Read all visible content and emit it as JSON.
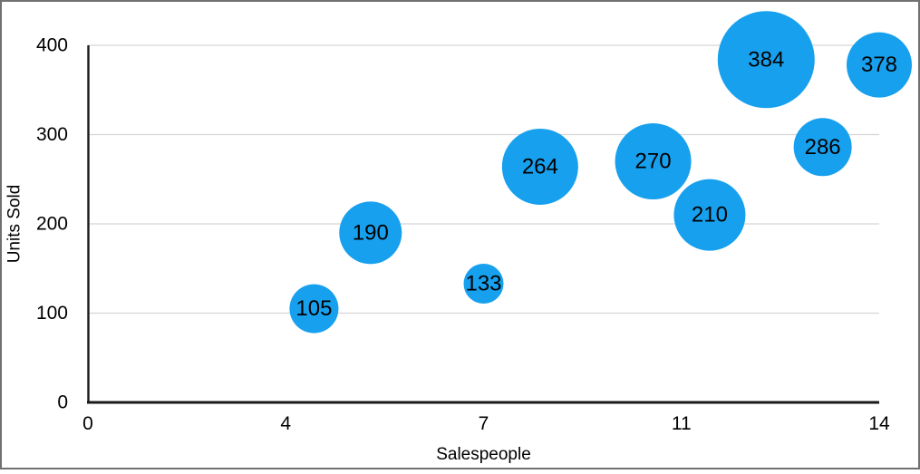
{
  "chart_data": {
    "type": "bubble",
    "title": "",
    "xlabel": "Salespeople",
    "ylabel": "Units Sold",
    "xlim": [
      0,
      14
    ],
    "ylim": [
      0,
      400
    ],
    "grid": "horizontal",
    "legend": "none",
    "x_ticks": [
      {
        "value": 0,
        "label": "0"
      },
      {
        "value": 3.5,
        "label": "4"
      },
      {
        "value": 7,
        "label": "7"
      },
      {
        "value": 10.5,
        "label": "11"
      },
      {
        "value": 14,
        "label": "14"
      }
    ],
    "y_ticks": [
      {
        "value": 0,
        "label": "0"
      },
      {
        "value": 100,
        "label": "100"
      },
      {
        "value": 200,
        "label": "200"
      },
      {
        "value": 300,
        "label": "300"
      },
      {
        "value": 400,
        "label": "400"
      }
    ],
    "points": [
      {
        "x": 4,
        "y": 105,
        "label": "105",
        "radius_px": 27
      },
      {
        "x": 5,
        "y": 190,
        "label": "190",
        "radius_px": 34.5
      },
      {
        "x": 7,
        "y": 133,
        "label": "133",
        "radius_px": 22
      },
      {
        "x": 8,
        "y": 264,
        "label": "264",
        "radius_px": 42
      },
      {
        "x": 10,
        "y": 270,
        "label": "270",
        "radius_px": 42
      },
      {
        "x": 11,
        "y": 210,
        "label": "210",
        "radius_px": 39.5
      },
      {
        "x": 12,
        "y": 384,
        "label": "384",
        "radius_px": 53.5
      },
      {
        "x": 13,
        "y": 286,
        "label": "286",
        "radius_px": 32
      },
      {
        "x": 14,
        "y": 378,
        "label": "378",
        "radius_px": 36
      }
    ],
    "colors": {
      "bubble": "#17A0EE",
      "bubble_label": "#000000",
      "gridline": "#D5D5D5",
      "axis_line": "#1A1A1A",
      "tick_label": "#000000",
      "axis_title": "#000000",
      "frame_border": "#707070",
      "background": "#FFFFFF"
    }
  }
}
